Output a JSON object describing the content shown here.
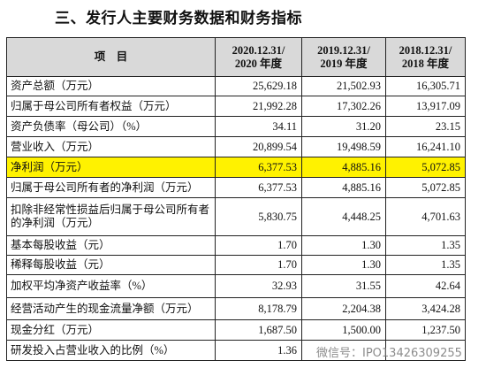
{
  "title": "三、发行人主要财务数据和财务指标",
  "table": {
    "header": [
      [
        "项　目"
      ],
      [
        "2020.12.31/",
        "2020 年度"
      ],
      [
        "2019.12.31/",
        "2019 年度"
      ],
      [
        "2018.12.31/",
        "2018 年度"
      ]
    ],
    "rows": [
      [
        "资产总额（万元）",
        "25,629.18",
        "21,502.93",
        "16,305.71"
      ],
      [
        "归属于母公司所有者权益（万元）",
        "21,992.28",
        "17,302.26",
        "13,917.09"
      ],
      [
        "资产负债率（母公司）（%）",
        "34.11",
        "31.20",
        "23.15"
      ],
      [
        "营业收入（万元）",
        "20,899.54",
        "19,498.59",
        "16,241.10"
      ],
      [
        "净利润（万元）",
        "6,377.53",
        "4,885.16",
        "5,072.85"
      ],
      [
        "归属于母公司所有者的净利润（万元）",
        "6,377.53",
        "4,885.16",
        "5,072.85"
      ],
      [
        "扣除非经常性损益后归属于母公司所有者的净利润（万元）",
        "5,830.75",
        "4,448.25",
        "4,701.63"
      ],
      [
        "基本每股收益（元）",
        "1.70",
        "1.30",
        "1.35"
      ],
      [
        "稀释每股收益（元）",
        "1.70",
        "1.30",
        "1.35"
      ],
      [
        "加权平均净资产收益率（%）",
        "32.93",
        "31.55",
        "42.64"
      ],
      [
        "经营活动产生的现金流量净额（万元）",
        "8,178.79",
        "2,204.38",
        "3,424.28"
      ],
      [
        "现金分红（万元）",
        "1,687.50",
        "1,500.00",
        "1,237.50"
      ],
      [
        "研发投入占营业收入的比例（%）",
        "1.36"
      ]
    ],
    "highlight_row": 4
  },
  "watermark": "微信号：IPO13426309255"
}
